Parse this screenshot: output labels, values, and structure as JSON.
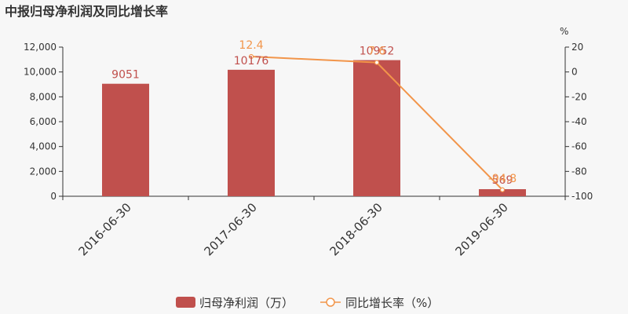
{
  "chart_data": {
    "type": "bar",
    "title": "中报归母净利润及同比增长率",
    "categories": [
      "2016-06-30",
      "2017-06-30",
      "2018-06-30",
      "2019-06-30"
    ],
    "series": [
      {
        "name": "归母净利润（万）",
        "type": "bar",
        "axis": "left",
        "values": [
          9051,
          10176,
          10952,
          569
        ],
        "labels": [
          "9051",
          "10176",
          "10952",
          "569"
        ],
        "color": "#c0504d"
      },
      {
        "name": "同比增长率（%）",
        "type": "line",
        "axis": "right",
        "values": [
          null,
          12.4,
          7.6,
          -94.8
        ],
        "labels": [
          "",
          "12.4",
          "7.6",
          "-94.8"
        ],
        "color": "#f2954a"
      }
    ],
    "y_left": {
      "min": 0,
      "max": 12000,
      "ticks": [
        "0",
        "2,000",
        "4,000",
        "6,000",
        "8,000",
        "10,000",
        "12,000"
      ]
    },
    "y_right": {
      "min": -100,
      "max": 20,
      "unit": "%",
      "ticks": [
        "-100",
        "-80",
        "-60",
        "-40",
        "-20",
        "0",
        "20"
      ]
    },
    "grid": false,
    "legend_position": "bottom"
  }
}
